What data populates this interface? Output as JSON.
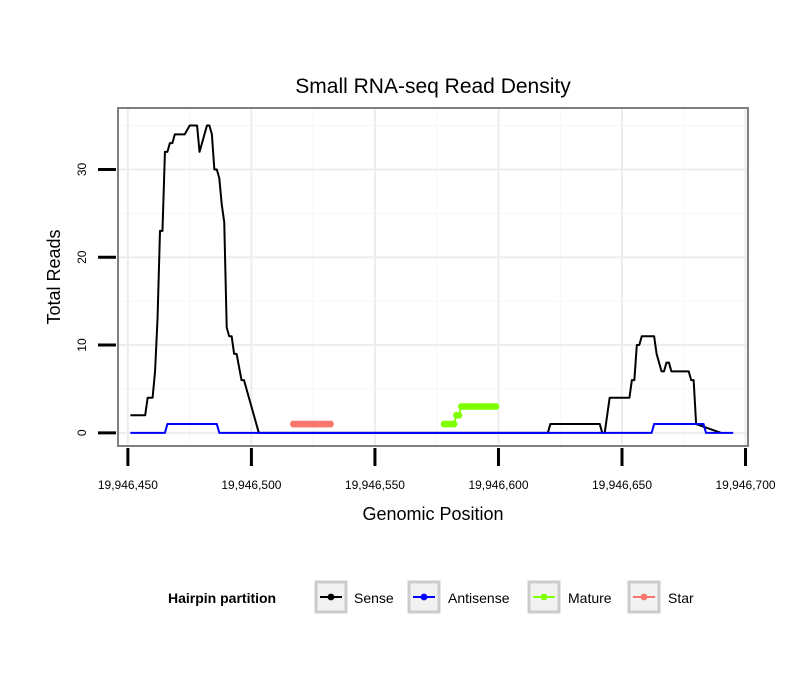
{
  "chart_data": {
    "type": "line",
    "title": "Small RNA-seq Read Density",
    "xlabel": "Genomic Position",
    "ylabel": "Total Reads",
    "xlim": [
      19946446,
      19946701
    ],
    "ylim": [
      -1.5,
      37
    ],
    "x_ticks": [
      19946450,
      19946500,
      19946550,
      19946600,
      19946650,
      19946700
    ],
    "x_tick_labels": [
      "19,946,450",
      "19,946,500",
      "19,946,550",
      "19,946,600",
      "19,946,650",
      "19,946,700"
    ],
    "y_ticks": [
      0,
      10,
      20,
      30
    ],
    "y_tick_labels": [
      "0",
      "10",
      "20",
      "30"
    ],
    "grid": true,
    "legend": {
      "title": "Hairpin partition",
      "position": "bottom",
      "entries": [
        "Sense",
        "Antisense",
        "Mature",
        "Star"
      ]
    },
    "series": [
      {
        "name": "Sense",
        "color": "#000000",
        "style": "line",
        "x": [
          19946451,
          19946457,
          19946458,
          19946460,
          19946461,
          19946462,
          19946463,
          19946464,
          19946465,
          19946466,
          19946467,
          19946468,
          19946469,
          19946470,
          19946472,
          19946473,
          19946475,
          19946476,
          19946477,
          19946478,
          19946479,
          19946480,
          19946481,
          19946482,
          19946483,
          19946484,
          19946485,
          19946486,
          19946487,
          19946488,
          19946489,
          19946490,
          19946491,
          19946492,
          19946493,
          19946494,
          19946496,
          19946497,
          19946498,
          19946500,
          19946502,
          19946503,
          19946620,
          19946621,
          19946622,
          19946640,
          19946641,
          19946642,
          19946643,
          19946644,
          19946645,
          19946646,
          19946647,
          19946652,
          19946653,
          19946654,
          19946655,
          19946656,
          19946657,
          19946658,
          19946663,
          19946664,
          19946665,
          19946666,
          19946667,
          19946668,
          19946669,
          19946670,
          19946671,
          19946676,
          19946677,
          19946678,
          19946679,
          19946680,
          19946690
        ],
        "y": [
          2,
          2,
          4,
          4,
          7,
          13,
          23,
          23,
          32,
          32,
          33,
          33,
          34,
          34,
          34,
          34,
          35,
          35,
          35,
          35,
          32,
          33,
          34,
          35,
          35,
          34,
          30,
          30,
          29,
          26,
          24,
          12,
          11,
          11,
          9,
          9,
          6,
          6,
          5,
          3,
          1,
          0,
          0,
          1,
          1,
          1,
          1,
          0,
          0,
          2,
          4,
          4,
          4,
          4,
          4,
          6,
          6,
          10,
          10,
          11,
          11,
          9,
          8,
          7,
          7,
          8,
          8,
          7,
          7,
          7,
          7,
          6,
          6,
          1,
          0
        ]
      },
      {
        "name": "Antisense",
        "color": "#0000ff",
        "style": "line",
        "x": [
          19946451,
          19946465,
          19946466,
          19946486,
          19946487,
          19946662,
          19946663,
          19946683,
          19946684,
          19946695
        ],
        "y": [
          0,
          0,
          1,
          1,
          0,
          0,
          1,
          1,
          0,
          0
        ]
      },
      {
        "name": "Mature",
        "color": "#7fff00",
        "style": "points",
        "x": [
          19946578,
          19946579,
          19946580,
          19946581,
          19946582,
          19946583,
          19946584,
          19946585,
          19946586,
          19946587,
          19946588,
          19946589,
          19946590,
          19946591,
          19946592,
          19946593,
          19946594,
          19946595,
          19946596,
          19946597,
          19946598,
          19946599
        ],
        "y": [
          1,
          1,
          1,
          1,
          1,
          2,
          2,
          3,
          3,
          3,
          3,
          3,
          3,
          3,
          3,
          3,
          3,
          3,
          3,
          3,
          3,
          3
        ]
      },
      {
        "name": "Star",
        "color": "#f8766d",
        "style": "points",
        "x": [
          19946517,
          19946518,
          19946519,
          19946520,
          19946521,
          19946522,
          19946523,
          19946524,
          19946525,
          19946526,
          19946527,
          19946528,
          19946529,
          19946530,
          19946531,
          19946532
        ],
        "y": [
          1,
          1,
          1,
          1,
          1,
          1,
          1,
          1,
          1,
          1,
          1,
          1,
          1,
          1,
          1,
          1
        ]
      }
    ]
  }
}
